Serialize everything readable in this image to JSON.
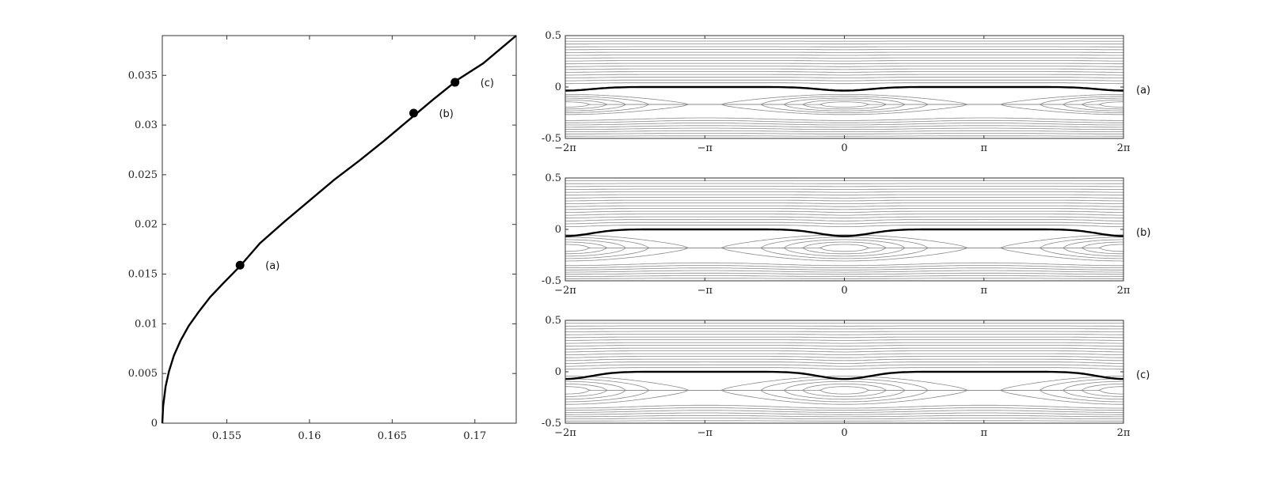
{
  "chart_data": [
    {
      "type": "line",
      "title": "",
      "xlabel": "",
      "ylabel": "",
      "xlim": [
        0.1511,
        0.1725
      ],
      "ylim": [
        0,
        0.039
      ],
      "x_ticks": [
        0.155,
        0.16,
        0.165,
        0.17
      ],
      "x_tick_labels": [
        "0.155",
        "0.16",
        "0.165",
        "0.17"
      ],
      "y_ticks": [
        0,
        0.005,
        0.01,
        0.015,
        0.02,
        0.025,
        0.03,
        0.035
      ],
      "y_tick_labels": [
        "0",
        "0.005",
        "0.01",
        "0.015",
        "0.02",
        "0.025",
        "0.03",
        "0.035"
      ],
      "grid": false,
      "series": [
        {
          "x": [
            0.1511,
            0.15115,
            0.1513,
            0.1515,
            0.1518,
            0.1522,
            0.1527,
            0.1533,
            0.154,
            0.1548,
            0.1558,
            0.157,
            0.1585,
            0.16,
            0.1615,
            0.163,
            0.1645,
            0.166,
            0.1675,
            0.169,
            0.1705,
            0.172,
            0.1725
          ],
          "y": [
            0,
            0.0017,
            0.0037,
            0.0052,
            0.0068,
            0.0083,
            0.0098,
            0.0112,
            0.0127,
            0.0141,
            0.0158,
            0.0181,
            0.0203,
            0.0224,
            0.0245,
            0.0264,
            0.0284,
            0.0305,
            0.0326,
            0.0346,
            0.0362,
            0.0383,
            0.039
          ]
        }
      ],
      "points": [
        {
          "label": "(a)",
          "x": 0.1558,
          "y": 0.0159
        },
        {
          "label": "(b)",
          "x": 0.1663,
          "y": 0.0312
        },
        {
          "label": "(c)",
          "x": 0.1688,
          "y": 0.0343
        }
      ]
    },
    {
      "type": "line",
      "title": "",
      "xlim": [
        -6.2832,
        6.2832
      ],
      "ylim": [
        -0.5,
        0.5
      ],
      "x_tick_labels": [
        "−2π",
        "−π",
        "0",
        "π",
        "2π"
      ],
      "y_tick_labels": [
        "-0.5",
        "0",
        "0.5"
      ],
      "panels": [
        {
          "label": "(a)",
          "separatrix_dip": -0.035,
          "cat_eye_center_y": -0.17,
          "cat_eye_half_height": 0.1
        },
        {
          "label": "(b)",
          "separatrix_dip": -0.065,
          "cat_eye_center_y": -0.18,
          "cat_eye_half_height": 0.13
        },
        {
          "label": "(c)",
          "separatrix_dip": -0.07,
          "cat_eye_center_y": -0.18,
          "cat_eye_half_height": 0.14
        }
      ]
    }
  ],
  "colors": {
    "curve": "#000000",
    "streamline": "#8a8a8a",
    "separatrix": "#000000",
    "axis": "#333333"
  }
}
